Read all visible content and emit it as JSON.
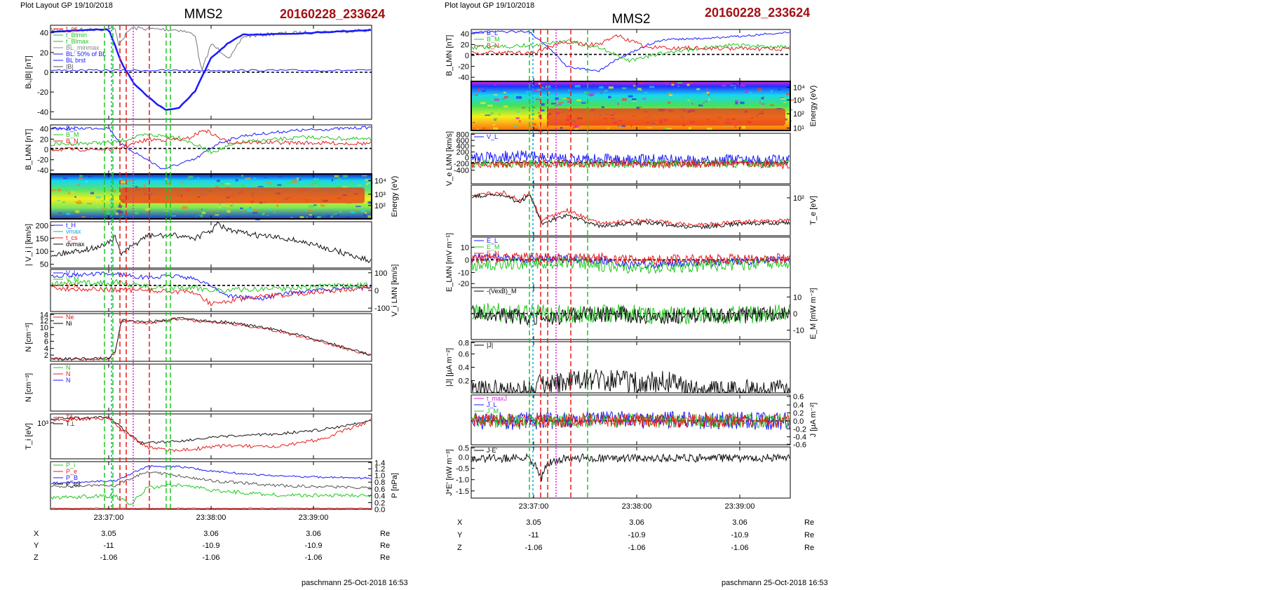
{
  "header": {
    "left_layout": "Plot Layout GP 19/10/2018",
    "right_layout": "Plot layout GP 19/10/2018",
    "spacecraft": "MMS2",
    "event_id": "20160228_233624"
  },
  "footer": {
    "left_credit": "paschmann 25-Oct-2018 16:53",
    "right_credit": "paschmann 25-Oct-2018 16:53"
  },
  "colors": {
    "blue": "#1a1aff",
    "red": "#e81c1c",
    "green": "#22c522",
    "black": "#000000",
    "magenta": "#dd22dd",
    "cyan": "#18a6d8",
    "title_red": "#a40f14"
  },
  "chart_data": [
    {
      "type": "line",
      "id": "left",
      "x_ticks": [
        "23:37:00",
        "23:38:00",
        "23:39:00"
      ],
      "position_table": {
        "rows": [
          {
            "label": "X",
            "values": [
              "3.05",
              "3.06",
              "3.06"
            ],
            "unit": "Re"
          },
          {
            "label": "Y",
            "values": [
              "-11",
              "-10.9",
              "-10.9"
            ],
            "unit": "Re"
          },
          {
            "label": "Z",
            "values": [
              "-1.06",
              "-1.06",
              "-1.06"
            ],
            "unit": "Re"
          }
        ]
      },
      "panels": [
        {
          "ylabel": "Bₗ,|B| [nT]",
          "ylim": [
            -45,
            45
          ],
          "yticks": [
            "40",
            "20",
            "0",
            "-20",
            "-40"
          ],
          "legend": [
            "t_cs",
            "t_Blmin",
            "t_Blmax",
            "BL_minmax",
            "BL: 50% of BL",
            "BL brst",
            "|B|"
          ]
        },
        {
          "ylabel": "B_LMN [nT]",
          "ylim": [
            -40,
            45
          ],
          "yticks": [
            "40",
            "20",
            "0",
            "-20",
            "-40"
          ],
          "legend": [
            "B_L",
            "B_M",
            "B_N"
          ]
        },
        {
          "ylabel": "Energy (eV)",
          "type": "heatmap",
          "yticks": [
            "10⁴",
            "10³",
            "10²"
          ],
          "side": "right"
        },
        {
          "ylabel": "| V_i | [km/s]",
          "ylim": [
            30,
            230
          ],
          "yticks": [
            "200",
            "150",
            "100",
            "50"
          ],
          "legend": [
            "t_H",
            "vmax",
            "t_cs",
            "dvmax"
          ]
        },
        {
          "ylabel": "V_i LMN [km/s]",
          "ylim": [
            -150,
            150
          ],
          "yticks": [
            "100",
            "0",
            "-100"
          ],
          "side": "right",
          "legend": [
            "V_L",
            "V_M",
            "V_N"
          ]
        },
        {
          "ylabel": "N [cm⁻³]",
          "ylim": [
            0,
            14
          ],
          "yticks": [
            "14",
            "12",
            "10",
            "8",
            "6",
            "4",
            "2"
          ],
          "legend": [
            "Ne",
            "Ni"
          ]
        },
        {
          "ylabel": "N [cm⁻³]",
          "type": "empty",
          "legend": [
            "N",
            "N",
            "N"
          ]
        },
        {
          "ylabel": "T_i [eV]",
          "yticks": [
            "10³"
          ],
          "legend": [
            "T∥",
            "T⊥"
          ]
        },
        {
          "ylabel": "P [nPa]",
          "ylim": [
            0,
            1.4
          ],
          "yticks": [
            "1.4",
            "1.2",
            "1.0",
            "0.8",
            "0.6",
            "0.4",
            "0.2",
            "0.0"
          ],
          "side": "right",
          "legend": [
            "P_i",
            "P_e",
            "P_B",
            "P_tot"
          ]
        }
      ]
    },
    {
      "type": "line",
      "id": "right",
      "x_ticks": [
        "23:37:00",
        "23:38:00",
        "23:39:00"
      ],
      "position_table": {
        "rows": [
          {
            "label": "X",
            "values": [
              "3.05",
              "3.06",
              "3.06"
            ],
            "unit": "Re"
          },
          {
            "label": "Y",
            "values": [
              "-11",
              "-10.9",
              "-10.9"
            ],
            "unit": "Re"
          },
          {
            "label": "Z",
            "values": [
              "-1.06",
              "-1.06",
              "-1.06"
            ],
            "unit": "Re"
          }
        ]
      },
      "panels": [
        {
          "ylabel": "B_LMN [nT]",
          "ylim": [
            -40,
            45
          ],
          "yticks": [
            "40",
            "20",
            "0",
            "-20",
            "-40"
          ],
          "legend": [
            "B_L",
            "B_M",
            "B_N"
          ]
        },
        {
          "ylabel": "Energy (eV)",
          "type": "heatmap",
          "side": "right",
          "yticks": [
            "10⁴",
            "10³",
            "10²",
            "10¹"
          ]
        },
        {
          "ylabel": "V_e LMN [km/s]",
          "ylim": [
            -450,
            850
          ],
          "yticks": [
            "800",
            "600",
            "400",
            "200",
            "0",
            "-200",
            "-400"
          ],
          "legend": [
            "V_L"
          ]
        },
        {
          "ylabel": "T_e [eV]",
          "side": "right",
          "yticks": [
            "10²"
          ]
        },
        {
          "ylabel": "E_LMN [mV m⁻¹]",
          "ylim": [
            -25,
            15
          ],
          "yticks": [
            "10",
            "0",
            "-10",
            "-20"
          ],
          "legend": [
            "E_L",
            "E_M",
            "E_N"
          ]
        },
        {
          "ylabel": "E_M [mW m⁻²]",
          "side": "right",
          "ylim": [
            -15,
            15
          ],
          "yticks": [
            "10",
            "0",
            "-10"
          ],
          "legend": [
            "-(VexB)_M"
          ]
        },
        {
          "ylabel": "|J| [μA m⁻²]",
          "ylim": [
            0,
            0.8
          ],
          "yticks": [
            "0.8",
            "0.6",
            "0.4",
            "0.2"
          ],
          "legend": [
            "|J|"
          ]
        },
        {
          "ylabel": "J [μA m⁻²]",
          "side": "right",
          "ylim": [
            -0.7,
            0.7
          ],
          "yticks": [
            "0.6",
            "0.4",
            "0.2",
            "0.0",
            "-0.2",
            "-0.4",
            "-0.6"
          ],
          "legend": [
            "t_maxJ",
            "J_L",
            "J_M",
            "J_N"
          ]
        },
        {
          "ylabel": "J*E' [nW m⁻³]",
          "ylim": [
            -1.6,
            0.6
          ],
          "yticks": [
            "0.5",
            "0.0",
            "-0.5",
            "-1.0",
            "-1.5"
          ],
          "legend": [
            "J·E'"
          ]
        }
      ]
    }
  ]
}
